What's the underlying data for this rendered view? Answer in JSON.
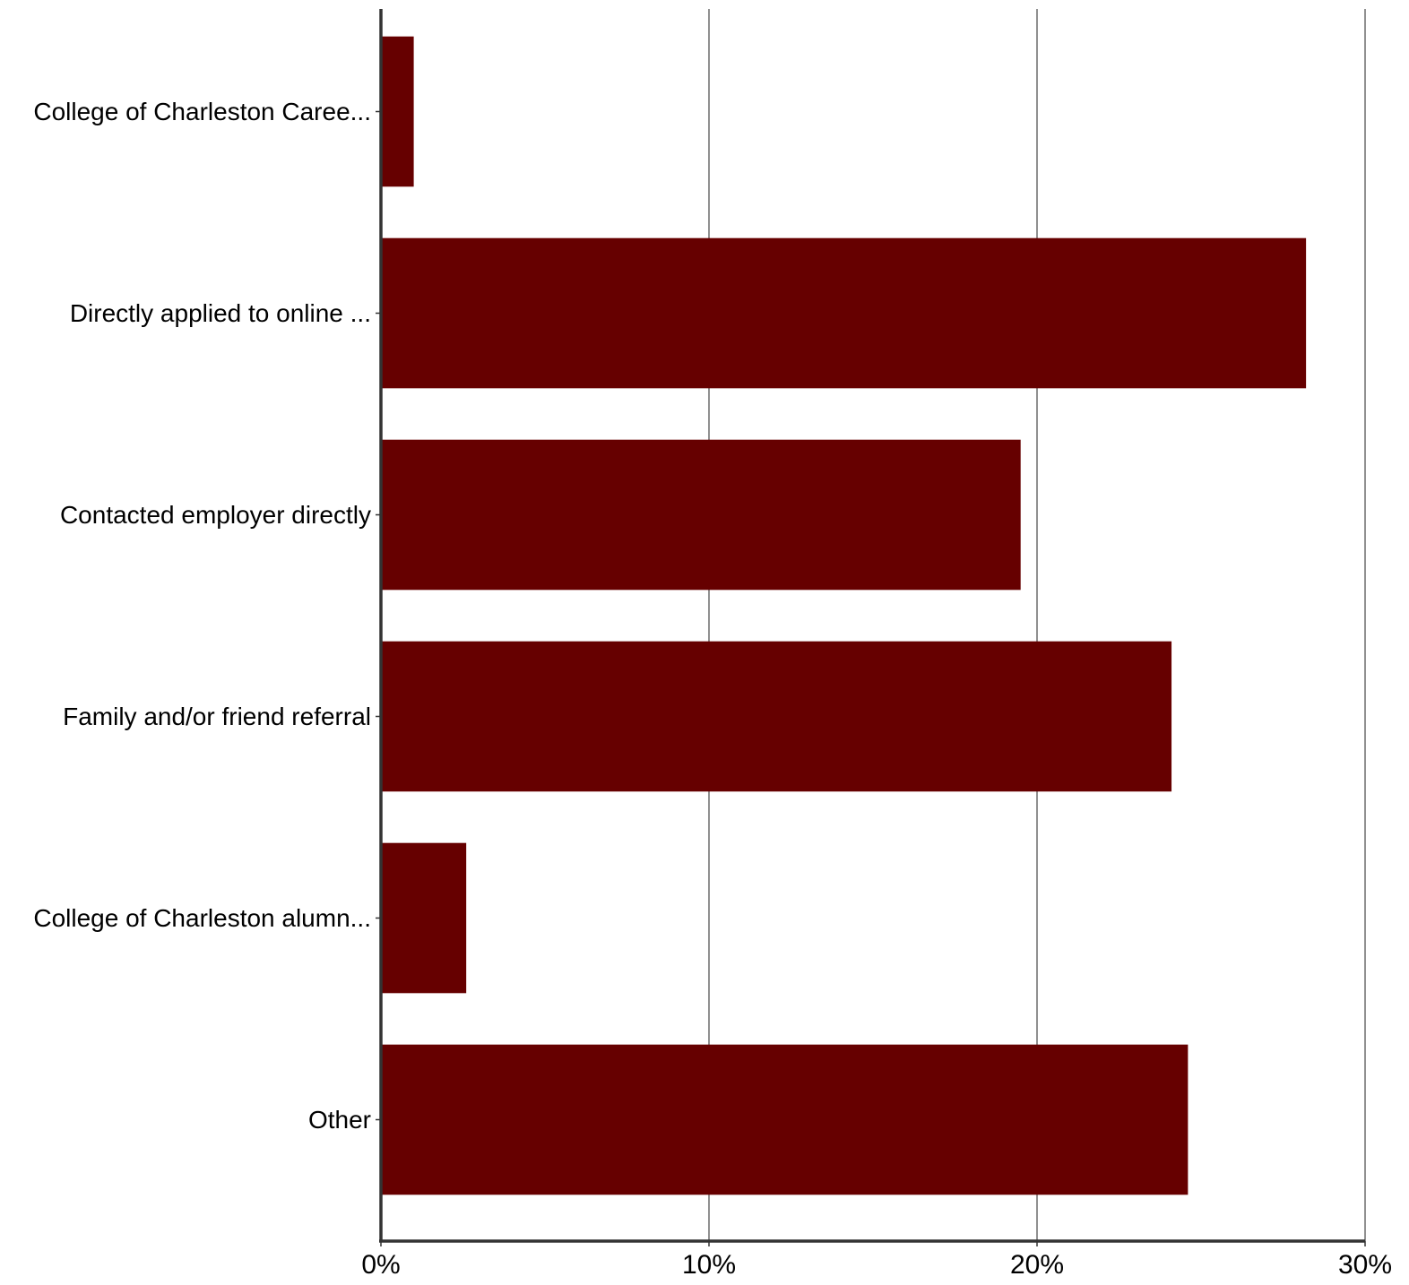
{
  "chart_data": {
    "type": "bar",
    "orientation": "horizontal",
    "categories": [
      "College of Charleston Caree...",
      "Directly applied to online ...",
      "Contacted employer directly",
      "Family and/or friend referral",
      "College of Charleston alumn...",
      "Other"
    ],
    "values": [
      1.0,
      28.2,
      19.5,
      24.1,
      2.6,
      24.6
    ],
    "value_unit": "%",
    "xlim": [
      0,
      30
    ],
    "x_ticks": [
      0,
      10,
      20,
      30
    ],
    "x_tick_labels": [
      "0%",
      "10%",
      "20%",
      "30%"
    ],
    "title": "",
    "xlabel": "",
    "ylabel": "",
    "grid": "vertical",
    "legend": "none",
    "colors": {
      "bar": "#660000",
      "grid": "#555555",
      "axis": "#333333"
    }
  }
}
